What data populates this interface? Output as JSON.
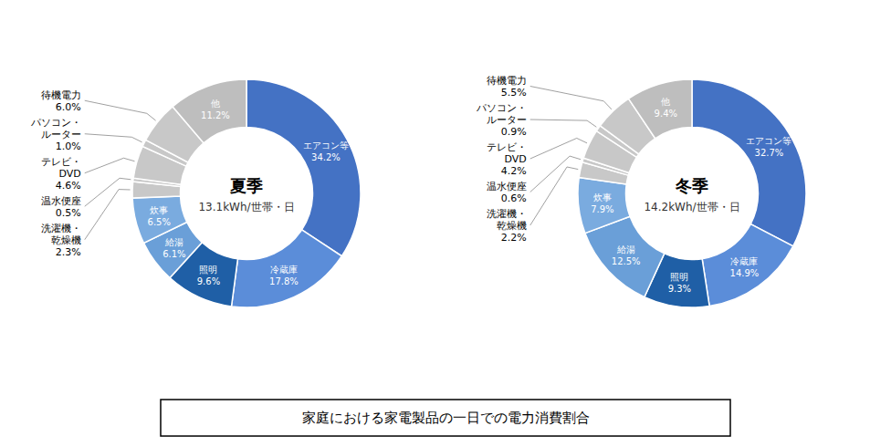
{
  "title": "家庭における家電製品の一日での電力消費割合",
  "chart_data": [
    {
      "type": "donut",
      "title": "夏季",
      "subtitle": "13.1kWh/世帯・日",
      "categories": [
        "エアコン等",
        "冷蔵庫",
        "照明",
        "給湯",
        "炊事",
        "洗濯機・\n乾燥機",
        "温水便座",
        "テレビ・\nDVD",
        "パソコン・\nルーター",
        "待機電力",
        "他"
      ],
      "values": [
        34.2,
        17.8,
        9.6,
        6.1,
        6.5,
        2.3,
        0.5,
        4.6,
        1.0,
        6.0,
        11.2
      ],
      "value_labels": [
        "34.2%",
        "17.8%",
        "9.6%",
        "6.1%",
        "6.5%",
        "2.3%",
        "0.5%",
        "4.6%",
        "1.0%",
        "6.0%",
        "11.2%"
      ],
      "colors": [
        "#4472C4",
        "#5B8DD9",
        "#1F5FA6",
        "#6A9FD8",
        "#7AABDF",
        "#C8C8C8",
        "#C8C8C8",
        "#C8C8C8",
        "#C8C8C8",
        "#C8C8C8",
        "#BEBEBE"
      ],
      "data_labels": true
    },
    {
      "type": "donut",
      "title": "冬季",
      "subtitle": "14.2kWh/世帯・日",
      "categories": [
        "エアコン等",
        "冷蔵庫",
        "照明",
        "給湯",
        "炊事",
        "洗濯機・\n乾燥機",
        "温水便座",
        "テレビ・\nDVD",
        "パソコン・\nルーター",
        "待機電力",
        "他"
      ],
      "values": [
        32.7,
        14.9,
        9.3,
        12.5,
        7.9,
        2.2,
        0.6,
        4.2,
        0.9,
        5.5,
        9.4
      ],
      "value_labels": [
        "32.7%",
        "14.9%",
        "9.3%",
        "12.5%",
        "7.9%",
        "2.2%",
        "0.6%",
        "4.2%",
        "0.9%",
        "5.5%",
        "9.4%"
      ],
      "colors": [
        "#4472C4",
        "#5B8DD9",
        "#1F5FA6",
        "#6A9FD8",
        "#7AABDF",
        "#C8C8C8",
        "#C8C8C8",
        "#C8C8C8",
        "#C8C8C8",
        "#C8C8C8",
        "#BEBEBE"
      ],
      "data_labels": true
    }
  ]
}
